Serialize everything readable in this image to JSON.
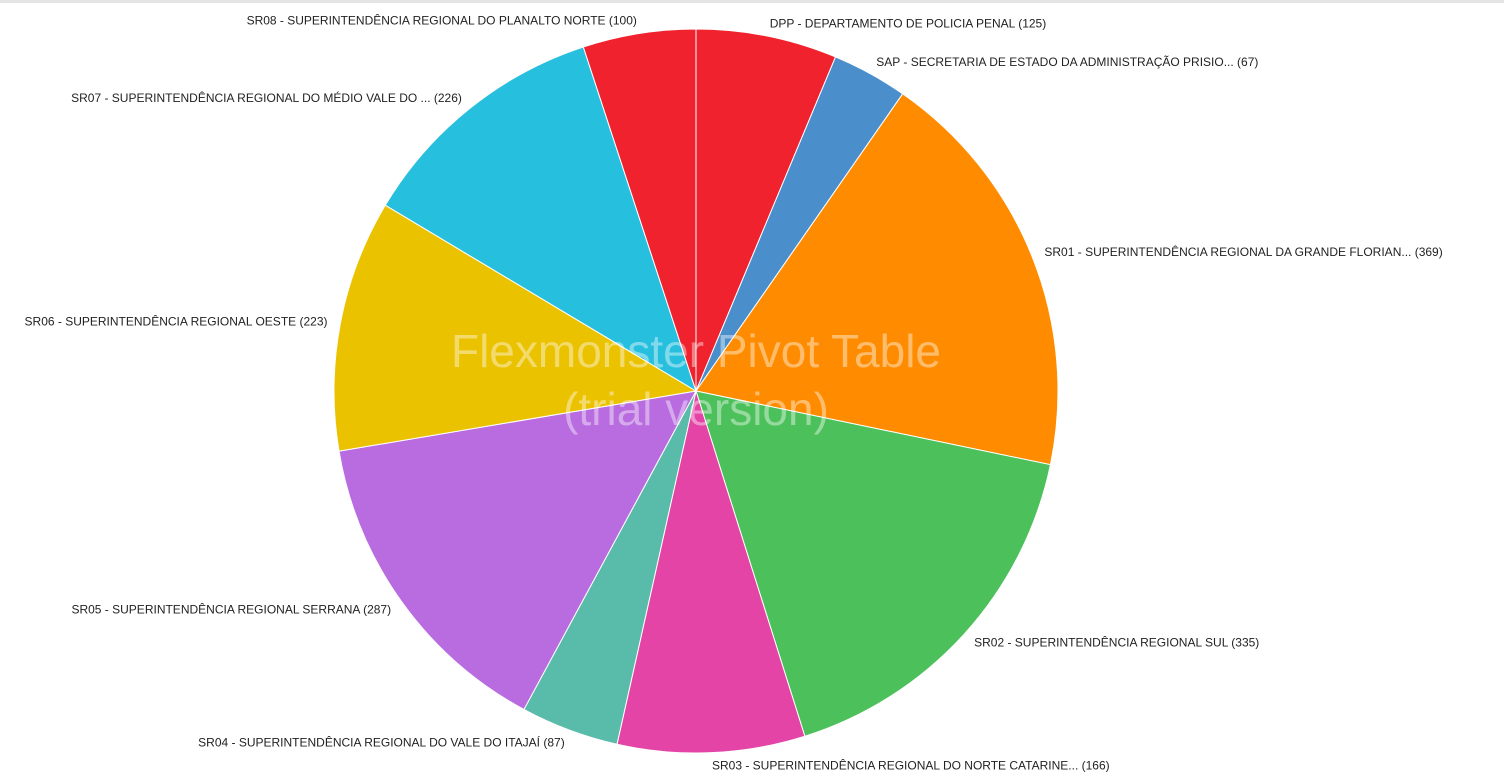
{
  "watermark": {
    "line1": "Flexmonster Pivot Table",
    "line2": "(trial version)"
  },
  "chart_data": {
    "type": "pie",
    "start_angle_deg": 0,
    "direction": "clockwise",
    "slices": [
      {
        "label": "DPP - DEPARTAMENTO DE POLICIA PENAL (125)",
        "value": 125,
        "color": "#f0222e"
      },
      {
        "label": "SAP - SECRETARIA DE ESTADO DA ADMINISTRAÇÃO PRISIO... (67)",
        "value": 67,
        "color": "#4a8fcb"
      },
      {
        "label": "SR01 - SUPERINTENDÊNCIA REGIONAL DA GRANDE FLORIAN... (369)",
        "value": 369,
        "color": "#ff8c00"
      },
      {
        "label": "SR02 - SUPERINTENDÊNCIA REGIONAL SUL (335)",
        "value": 335,
        "color": "#4cc05a"
      },
      {
        "label": "SR03 - SUPERINTENDÊNCIA REGIONAL DO NORTE CATARINE... (166)",
        "value": 166,
        "color": "#e344a5"
      },
      {
        "label": "SR04 - SUPERINTENDÊNCIA REGIONAL DO VALE DO ITAJAÍ (87)",
        "value": 87,
        "color": "#59bba9"
      },
      {
        "label": "SR05 - SUPERINTENDÊNCIA REGIONAL SERRANA (287)",
        "value": 287,
        "color": "#b86ce0"
      },
      {
        "label": "SR06 - SUPERINTENDÊNCIA REGIONAL OESTE (223)",
        "value": 223,
        "color": "#ebc200"
      },
      {
        "label": "SR07 - SUPERINTENDÊNCIA REGIONAL DO MÉDIO VALE DO ... (226)",
        "value": 226,
        "color": "#27bfde"
      },
      {
        "label": "SR08 - SUPERINTENDÊNCIA REGIONAL DO PLANALTO NORTE (100)",
        "value": 100,
        "color": "#f0222e"
      }
    ]
  }
}
